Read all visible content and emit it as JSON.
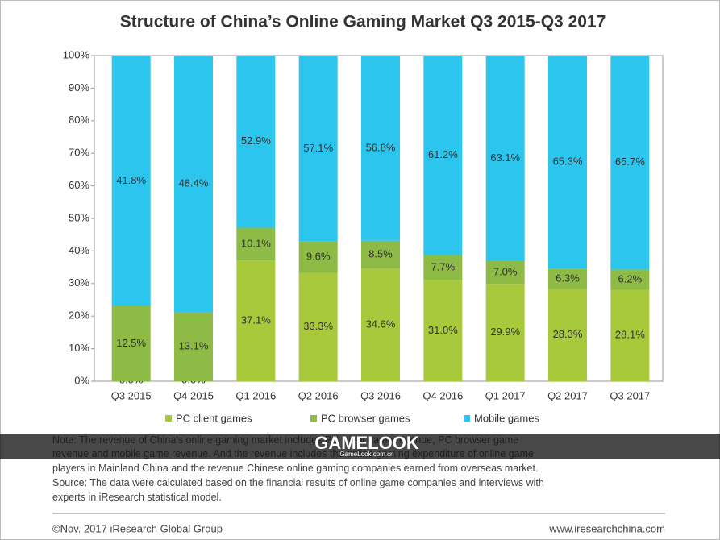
{
  "chart_data": {
    "type": "bar",
    "stack": "percent",
    "title": "Structure of China’s Online Gaming Market Q3 2015-Q3 2017",
    "categories": [
      "Q3 2015",
      "Q4 2015",
      "Q1 2016",
      "Q2 2016",
      "Q3 2016",
      "Q4 2016",
      "Q1 2017",
      "Q2 2017",
      "Q3 2017"
    ],
    "series": [
      {
        "name": "PC client  games",
        "color": "#a9c93c",
        "values": [
          0.0,
          0.0,
          37.1,
          33.3,
          34.6,
          31.0,
          29.9,
          28.3,
          28.1
        ],
        "value_labels": [
          "0.0%",
          "0.0%",
          "37.1%",
          "33.3%",
          "34.6%",
          "31.0%",
          "29.9%",
          "28.3%",
          "28.1%"
        ]
      },
      {
        "name": "PC browser games",
        "color": "#8dbb45",
        "values": [
          12.5,
          13.1,
          10.1,
          9.6,
          8.5,
          7.7,
          7.0,
          6.3,
          6.2
        ],
        "value_labels": [
          "12.5%",
          "13.1%",
          "10.1%",
          "9.6%",
          "8.5%",
          "7.7%",
          "7.0%",
          "6.3%",
          "6.2%"
        ]
      },
      {
        "name": "Mobile games",
        "color": "#2cc5ee",
        "values": [
          41.8,
          48.4,
          52.9,
          57.1,
          56.8,
          61.2,
          63.1,
          65.3,
          65.7
        ],
        "value_labels": [
          "41.8%",
          "48.4%",
          "52.9%",
          "57.1%",
          "56.8%",
          "61.2%",
          "63.1%",
          "65.3%",
          "65.7%"
        ]
      }
    ],
    "ylim": [
      0,
      100
    ],
    "yticks": [
      {
        "value": 0,
        "label": "0%"
      },
      {
        "value": 10,
        "label": "10%"
      },
      {
        "value": 20,
        "label": "20%"
      },
      {
        "value": 30,
        "label": "30%"
      },
      {
        "value": 40,
        "label": "40%"
      },
      {
        "value": 50,
        "label": "50%"
      },
      {
        "value": 60,
        "label": "60%"
      },
      {
        "value": 70,
        "label": "70%"
      },
      {
        "value": 80,
        "label": "80%"
      },
      {
        "value": 90,
        "label": "90%"
      },
      {
        "value": 100,
        "label": "100%"
      }
    ],
    "grid": false,
    "legend": "bottom"
  },
  "note": [
    "Note: The revenue of China's online gaming market includes PC client game revenue, PC browser game",
    "revenue and mobile game revenue. And the revenue includes the online gaming expenditure of online game",
    "players in Mainland China  and the  revenue Chinese online gaming companies earned from overseas market.",
    "Source: The data were calculated based on the financial results of online game companies and interviews with",
    "experts in iResearch statistical model."
  ],
  "watermark": {
    "brand": "GAMELOOK",
    "site": "GameLook.com.cn"
  },
  "footer": {
    "left": "©Nov. 2017 iResearch Global Group",
    "right": "www.iresearchchina.com"
  }
}
